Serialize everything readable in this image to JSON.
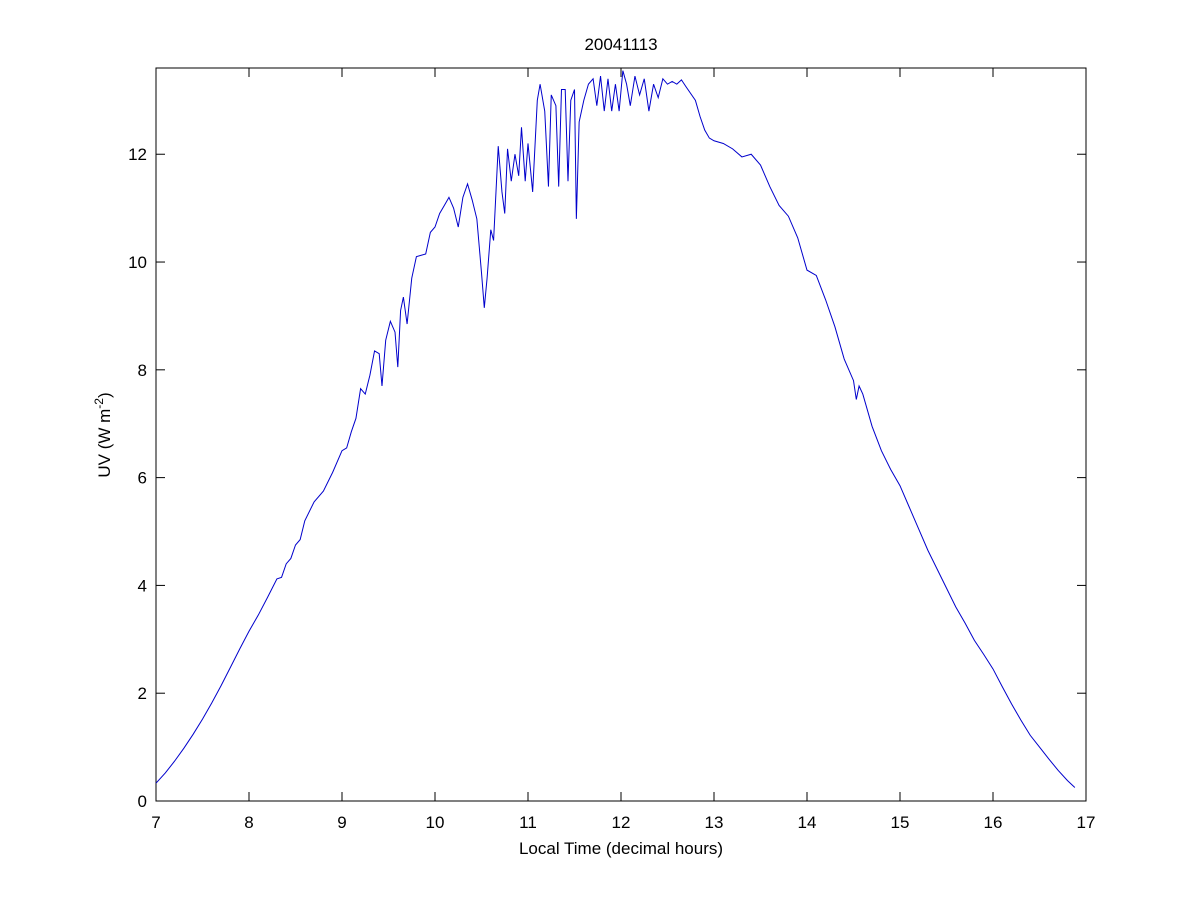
{
  "chart_data": {
    "type": "line",
    "title": "20041113",
    "xlabel": "Local Time (decimal hours)",
    "ylabel": [
      "UV (W m",
      "-2",
      ")"
    ],
    "color": "#0000cc",
    "xlim": [
      7,
      17
    ],
    "xticks": [
      7,
      8,
      9,
      10,
      11,
      12,
      13,
      14,
      15,
      16,
      17
    ],
    "ylim": [
      0,
      13.6
    ],
    "yticks": [
      0,
      2,
      4,
      6,
      8,
      10,
      12
    ],
    "grid": false,
    "x": [
      7.0,
      7.1,
      7.2,
      7.3,
      7.4,
      7.5,
      7.6,
      7.7,
      7.8,
      7.9,
      8.0,
      8.1,
      8.2,
      8.3,
      8.35,
      8.4,
      8.45,
      8.5,
      8.55,
      8.6,
      8.7,
      8.8,
      8.9,
      9.0,
      9.05,
      9.1,
      9.15,
      9.2,
      9.25,
      9.3,
      9.35,
      9.4,
      9.43,
      9.47,
      9.52,
      9.57,
      9.6,
      9.63,
      9.66,
      9.7,
      9.75,
      9.8,
      9.9,
      9.95,
      10.0,
      10.05,
      10.1,
      10.15,
      10.2,
      10.25,
      10.3,
      10.35,
      10.4,
      10.45,
      10.5,
      10.53,
      10.56,
      10.6,
      10.63,
      10.68,
      10.72,
      10.75,
      10.78,
      10.82,
      10.86,
      10.9,
      10.93,
      10.97,
      11.0,
      11.05,
      11.1,
      11.13,
      11.18,
      11.22,
      11.25,
      11.3,
      11.33,
      11.36,
      11.4,
      11.43,
      11.46,
      11.5,
      11.52,
      11.55,
      11.6,
      11.65,
      11.7,
      11.74,
      11.78,
      11.82,
      11.86,
      11.9,
      11.94,
      11.98,
      12.02,
      12.06,
      12.1,
      12.15,
      12.2,
      12.25,
      12.3,
      12.35,
      12.4,
      12.45,
      12.5,
      12.55,
      12.6,
      12.65,
      12.7,
      12.8,
      12.85,
      12.9,
      12.95,
      13.0,
      13.1,
      13.2,
      13.3,
      13.4,
      13.5,
      13.6,
      13.7,
      13.8,
      13.9,
      14.0,
      14.1,
      14.2,
      14.3,
      14.4,
      14.5,
      14.53,
      14.56,
      14.6,
      14.7,
      14.8,
      14.9,
      15.0,
      15.1,
      15.2,
      15.3,
      15.4,
      15.5,
      15.6,
      15.7,
      15.8,
      15.9,
      16.0,
      16.1,
      16.2,
      16.3,
      16.4,
      16.5,
      16.6,
      16.7,
      16.8,
      16.88
    ],
    "values": [
      0.33,
      0.52,
      0.74,
      0.98,
      1.24,
      1.52,
      1.82,
      2.14,
      2.48,
      2.82,
      3.15,
      3.45,
      3.78,
      4.12,
      4.15,
      4.4,
      4.5,
      4.75,
      4.85,
      5.2,
      5.55,
      5.75,
      6.1,
      6.5,
      6.55,
      6.85,
      7.1,
      7.65,
      7.55,
      7.9,
      8.35,
      8.3,
      7.7,
      8.55,
      8.9,
      8.7,
      8.05,
      9.1,
      9.35,
      8.85,
      9.7,
      10.1,
      10.15,
      10.55,
      10.65,
      10.9,
      11.05,
      11.2,
      11.0,
      10.65,
      11.2,
      11.45,
      11.15,
      10.8,
      9.8,
      9.15,
      9.7,
      10.6,
      10.4,
      12.15,
      11.3,
      10.9,
      12.1,
      11.5,
      12.0,
      11.6,
      12.5,
      11.5,
      12.2,
      11.3,
      13.0,
      13.3,
      12.8,
      11.4,
      13.1,
      12.9,
      11.4,
      13.2,
      13.2,
      11.5,
      13.0,
      13.2,
      10.8,
      12.6,
      13.0,
      13.3,
      13.4,
      12.9,
      13.45,
      12.8,
      13.4,
      12.8,
      13.3,
      12.8,
      13.55,
      13.3,
      12.9,
      13.45,
      13.1,
      13.4,
      12.8,
      13.3,
      13.05,
      13.4,
      13.3,
      13.35,
      13.3,
      13.38,
      13.25,
      13.0,
      12.7,
      12.45,
      12.3,
      12.25,
      12.2,
      12.1,
      11.95,
      12.0,
      11.8,
      11.4,
      11.05,
      10.85,
      10.45,
      9.85,
      9.75,
      9.3,
      8.8,
      8.2,
      7.8,
      7.45,
      7.7,
      7.55,
      6.95,
      6.5,
      6.15,
      5.85,
      5.45,
      5.05,
      4.65,
      4.3,
      3.95,
      3.6,
      3.3,
      2.98,
      2.72,
      2.45,
      2.12,
      1.8,
      1.5,
      1.22,
      1.0,
      0.78,
      0.57,
      0.38,
      0.25
    ]
  }
}
